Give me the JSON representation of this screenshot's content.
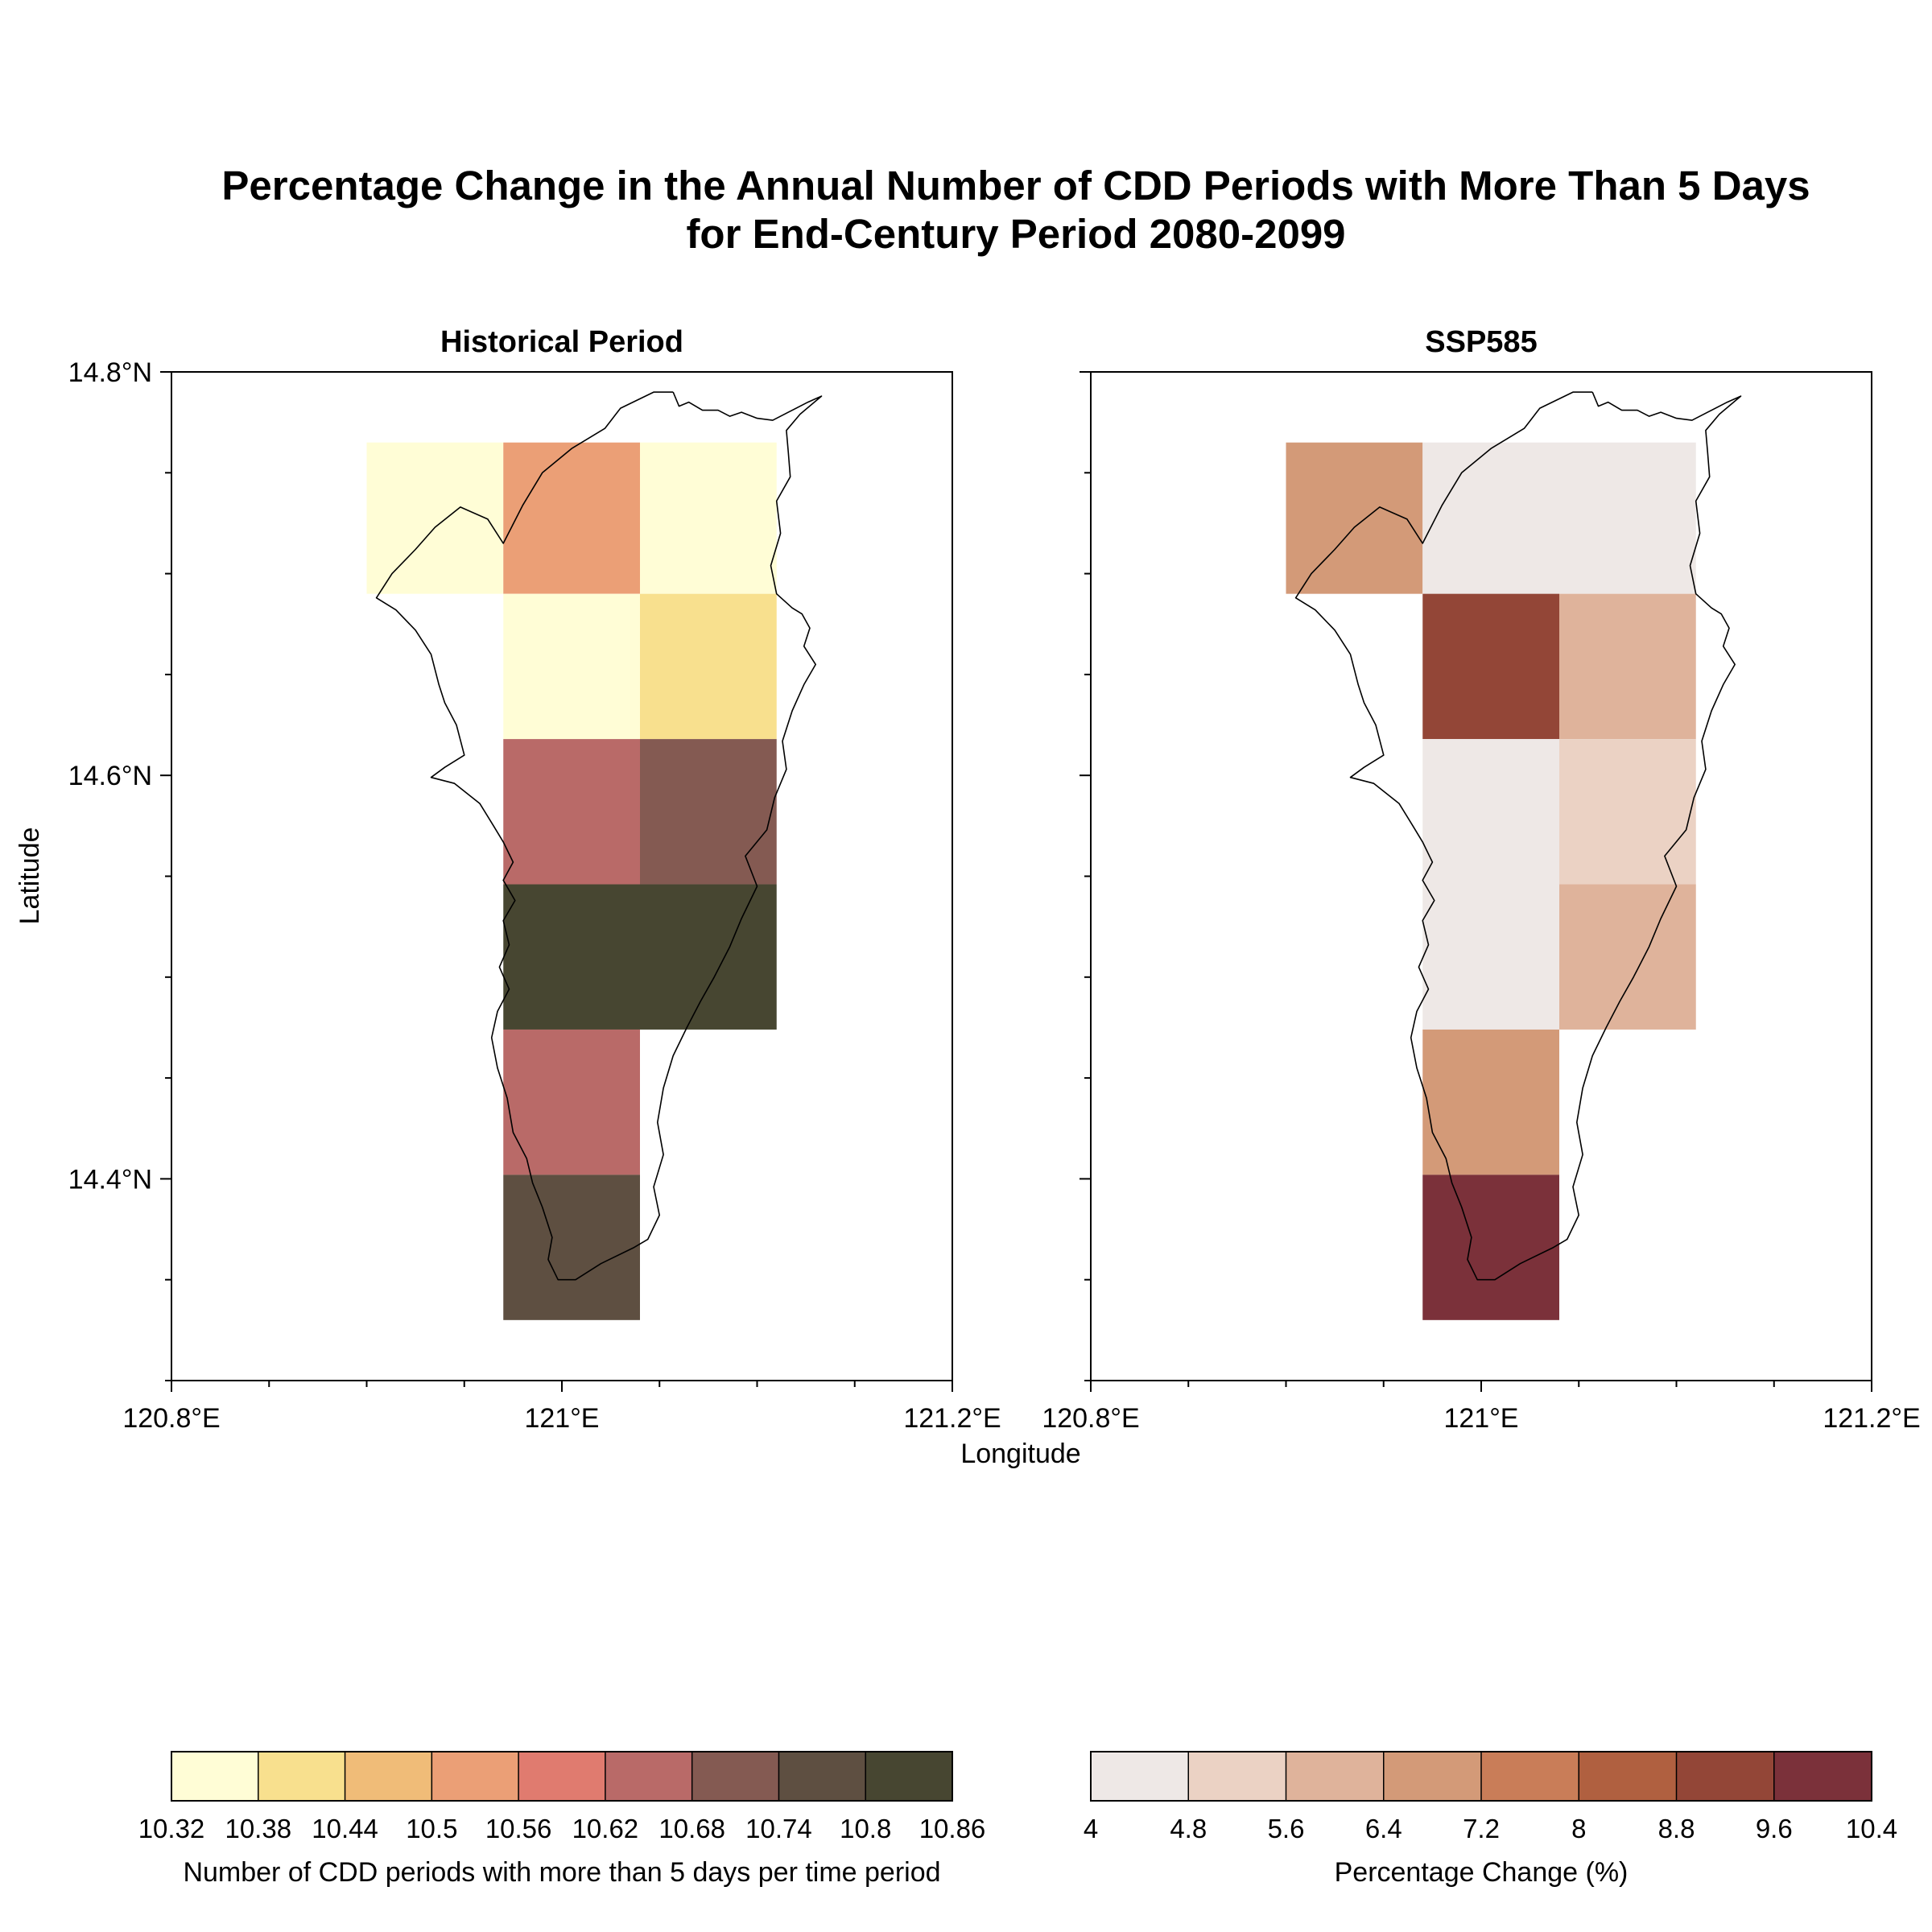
{
  "figure": {
    "title_line1": "Percentage Change in the Annual Number of CDD Periods with More Than 5 Days",
    "title_line2": "for End-Century Period 2080-2099",
    "y_axis_label": "Latitude",
    "x_axis_label": "Longitude",
    "lon_range": [
      120.8,
      121.2
    ],
    "lat_range": [
      14.3,
      14.8
    ],
    "lon_ticks": [
      "120.8°E",
      "121°E",
      "121.2°E"
    ],
    "lat_ticks": [
      "14.8°N",
      "14.6°N",
      "14.4°N"
    ]
  },
  "chart_data": [
    {
      "type": "heatmap",
      "title": "Historical Period",
      "colorbar_label": "Number of CDD periods with more than 5 days per time period",
      "colorbar_ticks": [
        "10.32",
        "10.38",
        "10.44",
        "10.5",
        "10.56",
        "10.62",
        "10.68",
        "10.74",
        "10.8",
        "10.86"
      ],
      "colorbar_colors": [
        "#fffdd6",
        "#f8e08e",
        "#f0bc78",
        "#eb9f76",
        "#e07b6f",
        "#b96a68",
        "#845a52",
        "#5e4f41",
        "#474631"
      ],
      "cells": [
        {
          "lon": [
            120.9,
            120.97
          ],
          "lat": [
            14.69,
            14.765
          ],
          "value": 10.35
        },
        {
          "lon": [
            120.97,
            121.04
          ],
          "lat": [
            14.69,
            14.765
          ],
          "value": 10.53
        },
        {
          "lon": [
            121.04,
            121.11
          ],
          "lat": [
            14.69,
            14.765
          ],
          "value": 10.35
        },
        {
          "lon": [
            120.97,
            121.04
          ],
          "lat": [
            14.618,
            14.69
          ],
          "value": 10.35
        },
        {
          "lon": [
            121.04,
            121.11
          ],
          "lat": [
            14.618,
            14.69
          ],
          "value": 10.41
        },
        {
          "lon": [
            120.97,
            121.04
          ],
          "lat": [
            14.546,
            14.618
          ],
          "value": 10.65
        },
        {
          "lon": [
            121.04,
            121.11
          ],
          "lat": [
            14.546,
            14.618
          ],
          "value": 10.71
        },
        {
          "lon": [
            120.97,
            121.04
          ],
          "lat": [
            14.474,
            14.546
          ],
          "value": 10.83
        },
        {
          "lon": [
            121.04,
            121.11
          ],
          "lat": [
            14.474,
            14.546
          ],
          "value": 10.83
        },
        {
          "lon": [
            120.97,
            121.04
          ],
          "lat": [
            14.402,
            14.474
          ],
          "value": 10.65
        },
        {
          "lon": [
            120.97,
            121.04
          ],
          "lat": [
            14.33,
            14.402
          ],
          "value": 10.77
        }
      ]
    },
    {
      "type": "heatmap",
      "title": "SSP585",
      "colorbar_label": "Percentage Change (%)",
      "colorbar_ticks": [
        "4",
        "4.8",
        "5.6",
        "6.4",
        "7.2",
        "8",
        "8.8",
        "9.6",
        "10.4"
      ],
      "colorbar_colors": [
        "#eee8e6",
        "#ebd2c4",
        "#dfb39b",
        "#d39a78",
        "#c97d58",
        "#b06040",
        "#934637",
        "#7b313a"
      ],
      "cells": [
        {
          "lon": [
            120.9,
            120.97
          ],
          "lat": [
            14.69,
            14.765
          ],
          "value": 6.8
        },
        {
          "lon": [
            120.97,
            121.04
          ],
          "lat": [
            14.69,
            14.765
          ],
          "value": 4.4
        },
        {
          "lon": [
            121.04,
            121.11
          ],
          "lat": [
            14.69,
            14.765
          ],
          "value": 4.4
        },
        {
          "lon": [
            120.97,
            121.04
          ],
          "lat": [
            14.618,
            14.69
          ],
          "value": 9.2
        },
        {
          "lon": [
            121.04,
            121.11
          ],
          "lat": [
            14.618,
            14.69
          ],
          "value": 6.0
        },
        {
          "lon": [
            120.97,
            121.04
          ],
          "lat": [
            14.546,
            14.618
          ],
          "value": 4.4
        },
        {
          "lon": [
            121.04,
            121.11
          ],
          "lat": [
            14.546,
            14.618
          ],
          "value": 5.2
        },
        {
          "lon": [
            120.97,
            121.04
          ],
          "lat": [
            14.474,
            14.546
          ],
          "value": 4.4
        },
        {
          "lon": [
            121.04,
            121.11
          ],
          "lat": [
            14.474,
            14.546
          ],
          "value": 6.0
        },
        {
          "lon": [
            120.97,
            121.04
          ],
          "lat": [
            14.402,
            14.474
          ],
          "value": 6.8
        },
        {
          "lon": [
            120.97,
            121.04
          ],
          "lat": [
            14.33,
            14.402
          ],
          "value": 10.0
        }
      ]
    }
  ],
  "coastline": [
    [
      121.057,
      14.79
    ],
    [
      121.06,
      14.783
    ],
    [
      121.065,
      14.785
    ],
    [
      121.072,
      14.781
    ],
    [
      121.08,
      14.781
    ],
    [
      121.086,
      14.778
    ],
    [
      121.092,
      14.78
    ],
    [
      121.1,
      14.777
    ],
    [
      121.108,
      14.776
    ],
    [
      121.116,
      14.78
    ],
    [
      121.126,
      14.785
    ],
    [
      121.133,
      14.788
    ],
    [
      121.122,
      14.779
    ],
    [
      121.115,
      14.771
    ],
    [
      121.116,
      14.76
    ],
    [
      121.117,
      14.748
    ],
    [
      121.11,
      14.736
    ],
    [
      121.112,
      14.72
    ],
    [
      121.107,
      14.704
    ],
    [
      121.11,
      14.69
    ],
    [
      121.118,
      14.683
    ],
    [
      121.123,
      14.68
    ],
    [
      121.127,
      14.673
    ],
    [
      121.124,
      14.664
    ],
    [
      121.13,
      14.655
    ],
    [
      121.124,
      14.645
    ],
    [
      121.118,
      14.632
    ],
    [
      121.113,
      14.617
    ],
    [
      121.115,
      14.603
    ],
    [
      121.109,
      14.589
    ],
    [
      121.105,
      14.573
    ],
    [
      121.094,
      14.56
    ],
    [
      121.1,
      14.545
    ],
    [
      121.092,
      14.529
    ],
    [
      121.086,
      14.515
    ],
    [
      121.078,
      14.5
    ],
    [
      121.071,
      14.488
    ],
    [
      121.064,
      14.475
    ],
    [
      121.057,
      14.461
    ],
    [
      121.052,
      14.445
    ],
    [
      121.049,
      14.428
    ],
    [
      121.052,
      14.412
    ],
    [
      121.047,
      14.396
    ],
    [
      121.05,
      14.382
    ],
    [
      121.044,
      14.37
    ],
    [
      121.037,
      14.366
    ],
    [
      121.02,
      14.358
    ],
    [
      121.007,
      14.35
    ],
    [
      120.998,
      14.35
    ],
    [
      120.993,
      14.36
    ],
    [
      120.995,
      14.371
    ],
    [
      120.99,
      14.386
    ],
    [
      120.985,
      14.398
    ],
    [
      120.982,
      14.41
    ],
    [
      120.975,
      14.423
    ],
    [
      120.972,
      14.44
    ],
    [
      120.967,
      14.455
    ],
    [
      120.964,
      14.47
    ],
    [
      120.967,
      14.483
    ],
    [
      120.973,
      14.494
    ],
    [
      120.968,
      14.505
    ],
    [
      120.973,
      14.516
    ],
    [
      120.97,
      14.528
    ],
    [
      120.976,
      14.538
    ],
    [
      120.97,
      14.548
    ],
    [
      120.975,
      14.557
    ],
    [
      120.97,
      14.567
    ],
    [
      120.965,
      14.575
    ],
    [
      120.958,
      14.586
    ],
    [
      120.945,
      14.596
    ],
    [
      120.933,
      14.599
    ],
    [
      120.94,
      14.604
    ],
    [
      120.95,
      14.61
    ],
    [
      120.946,
      14.625
    ],
    [
      120.94,
      14.636
    ],
    [
      120.937,
      14.645
    ],
    [
      120.933,
      14.66
    ],
    [
      120.925,
      14.672
    ],
    [
      120.915,
      14.682
    ],
    [
      120.905,
      14.688
    ],
    [
      120.913,
      14.7
    ],
    [
      120.925,
      14.712
    ],
    [
      120.935,
      14.723
    ],
    [
      120.948,
      14.733
    ],
    [
      120.962,
      14.727
    ],
    [
      120.97,
      14.715
    ],
    [
      120.98,
      14.734
    ],
    [
      120.99,
      14.75
    ],
    [
      121.005,
      14.762
    ],
    [
      121.022,
      14.772
    ],
    [
      121.03,
      14.782
    ],
    [
      121.047,
      14.79
    ],
    [
      121.057,
      14.79
    ]
  ]
}
